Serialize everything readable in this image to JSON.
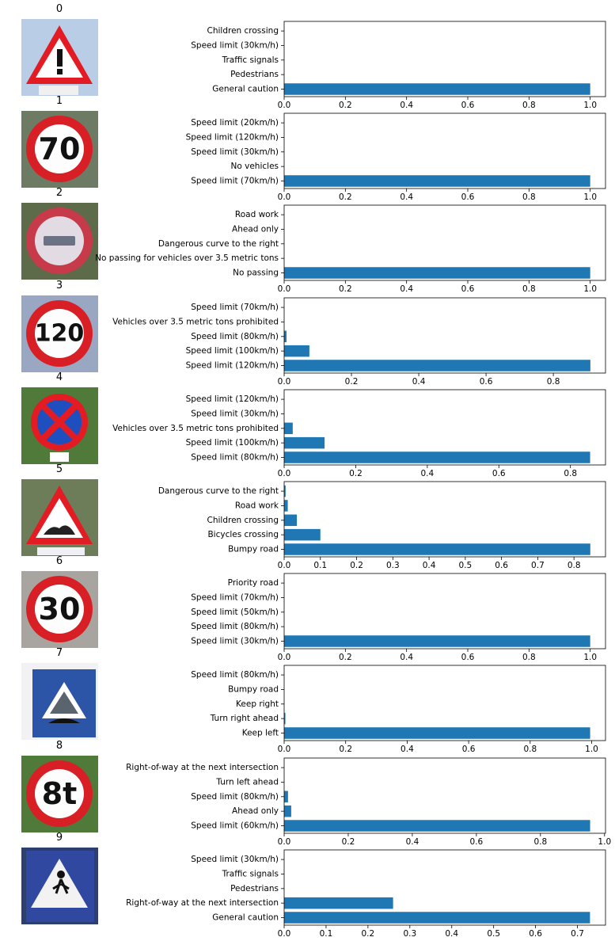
{
  "colors": {
    "bar": "#1f77b4",
    "axis": "#000000"
  },
  "chart_data": [
    {
      "type": "bar",
      "orientation": "horizontal",
      "title": "0",
      "sign_icon": "general-caution-sign",
      "categories": [
        "General caution",
        "Pedestrians",
        "Traffic signals",
        "Speed limit (30km/h)",
        "Children crossing"
      ],
      "values": [
        1.0,
        0.0,
        0.0,
        0.0,
        0.0
      ],
      "xlim": [
        0,
        1.05
      ],
      "xticks": [
        "0.0",
        "0.2",
        "0.4",
        "0.6",
        "0.8",
        "1.0"
      ],
      "xtick_values": [
        0,
        0.2,
        0.4,
        0.6,
        0.8,
        1.0
      ]
    },
    {
      "type": "bar",
      "orientation": "horizontal",
      "title": "1",
      "sign_icon": "speed-limit-70-sign",
      "sign_text": "70",
      "categories": [
        "Speed limit (70km/h)",
        "No vehicles",
        "Speed limit (30km/h)",
        "Speed limit (120km/h)",
        "Speed limit (20km/h)"
      ],
      "values": [
        1.0,
        0.0,
        0.0,
        0.0,
        0.0
      ],
      "xlim": [
        0,
        1.05
      ],
      "xticks": [
        "0.0",
        "0.2",
        "0.4",
        "0.6",
        "0.8",
        "1.0"
      ],
      "xtick_values": [
        0,
        0.2,
        0.4,
        0.6,
        0.8,
        1.0
      ]
    },
    {
      "type": "bar",
      "orientation": "horizontal",
      "title": "2",
      "sign_icon": "no-passing-bus-sign",
      "categories": [
        "No passing",
        "No passing for vehicles over 3.5 metric tons",
        "Dangerous curve to the right",
        "Ahead only",
        "Road work"
      ],
      "values": [
        1.0,
        0.0,
        0.0,
        0.0,
        0.0
      ],
      "xlim": [
        0,
        1.05
      ],
      "xticks": [
        "0.0",
        "0.2",
        "0.4",
        "0.6",
        "0.8",
        "1.0"
      ],
      "xtick_values": [
        0,
        0.2,
        0.4,
        0.6,
        0.8,
        1.0
      ]
    },
    {
      "type": "bar",
      "orientation": "horizontal",
      "title": "3",
      "sign_icon": "speed-limit-120-sign",
      "sign_text": "120",
      "categories": [
        "Speed limit (120km/h)",
        "Speed limit (100km/h)",
        "Speed limit (80km/h)",
        "Vehicles over 3.5 metric tons prohibited",
        "Speed limit (70km/h)"
      ],
      "values": [
        0.91,
        0.075,
        0.007,
        0.0,
        0.0
      ],
      "xlim": [
        0,
        0.955
      ],
      "xticks": [
        "0.0",
        "0.2",
        "0.4",
        "0.6",
        "0.8"
      ],
      "xtick_values": [
        0,
        0.2,
        0.4,
        0.6,
        0.8
      ]
    },
    {
      "type": "bar",
      "orientation": "horizontal",
      "title": "4",
      "sign_icon": "no-stopping-sign",
      "categories": [
        "Speed limit (80km/h)",
        "Speed limit (100km/h)",
        "Vehicles over 3.5 metric tons prohibited",
        "Speed limit (30km/h)",
        "Speed limit (120km/h)"
      ],
      "values": [
        0.855,
        0.113,
        0.024,
        0.0,
        0.0
      ],
      "xlim": [
        0,
        0.898
      ],
      "xticks": [
        "0.0",
        "0.2",
        "0.4",
        "0.6",
        "0.8"
      ],
      "xtick_values": [
        0,
        0.2,
        0.4,
        0.6,
        0.8
      ]
    },
    {
      "type": "bar",
      "orientation": "horizontal",
      "title": "5",
      "sign_icon": "bumpy-road-sign",
      "categories": [
        "Bumpy road",
        "Bicycles crossing",
        "Children crossing",
        "Road work",
        "Dangerous curve to the right"
      ],
      "values": [
        0.845,
        0.1,
        0.035,
        0.01,
        0.004
      ],
      "xlim": [
        0,
        0.887
      ],
      "xticks": [
        "0.0",
        "0.1",
        "0.2",
        "0.3",
        "0.4",
        "0.5",
        "0.6",
        "0.7",
        "0.8"
      ],
      "xtick_values": [
        0,
        0.1,
        0.2,
        0.3,
        0.4,
        0.5,
        0.6,
        0.7,
        0.8
      ]
    },
    {
      "type": "bar",
      "orientation": "horizontal",
      "title": "6",
      "sign_icon": "speed-limit-30-sign",
      "sign_text": "30",
      "categories": [
        "Speed limit (30km/h)",
        "Speed limit (80km/h)",
        "Speed limit (50km/h)",
        "Speed limit (70km/h)",
        "Priority road"
      ],
      "values": [
        1.0,
        0.0,
        0.0,
        0.0,
        0.0
      ],
      "xlim": [
        0,
        1.05
      ],
      "xticks": [
        "0.0",
        "0.2",
        "0.4",
        "0.6",
        "0.8",
        "1.0"
      ],
      "xtick_values": [
        0,
        0.2,
        0.4,
        0.6,
        0.8,
        1.0
      ]
    },
    {
      "type": "bar",
      "orientation": "horizontal",
      "title": "7",
      "sign_icon": "speed-bump-sign",
      "categories": [
        "Keep left",
        "Turn right ahead",
        "Keep right",
        "Bumpy road",
        "Speed limit (80km/h)"
      ],
      "values": [
        0.995,
        0.004,
        0.0,
        0.0,
        0.0
      ],
      "xlim": [
        0,
        1.045
      ],
      "xticks": [
        "0.0",
        "0.2",
        "0.4",
        "0.6",
        "0.8",
        "1.0"
      ],
      "xtick_values": [
        0,
        0.2,
        0.4,
        0.6,
        0.8,
        1.0
      ]
    },
    {
      "type": "bar",
      "orientation": "horizontal",
      "title": "8",
      "sign_icon": "weight-limit-8t-sign",
      "sign_text": "8t",
      "categories": [
        "Speed limit (60km/h)",
        "Ahead only",
        "Speed limit (80km/h)",
        "Turn left ahead",
        "Right-of-way at the next intersection"
      ],
      "values": [
        0.955,
        0.022,
        0.012,
        0.0,
        0.0
      ],
      "xlim": [
        0,
        1.003
      ],
      "xticks": [
        "0.0",
        "0.2",
        "0.4",
        "0.6",
        "0.8",
        "1.0"
      ],
      "xtick_values": [
        0,
        0.2,
        0.4,
        0.6,
        0.8,
        1.0
      ]
    },
    {
      "type": "bar",
      "orientation": "horizontal",
      "title": "9",
      "sign_icon": "pedestrian-crossing-sign",
      "categories": [
        "General caution",
        "Right-of-way at the next intersection",
        "Pedestrians",
        "Traffic signals",
        "Speed limit (30km/h)"
      ],
      "values": [
        0.73,
        0.26,
        0.0,
        0.0,
        0.0
      ],
      "xlim": [
        0,
        0.767
      ],
      "xticks": [
        "0.0",
        "0.1",
        "0.2",
        "0.3",
        "0.4",
        "0.5",
        "0.6",
        "0.7"
      ],
      "xtick_values": [
        0,
        0.1,
        0.2,
        0.3,
        0.4,
        0.5,
        0.6,
        0.7
      ]
    }
  ]
}
